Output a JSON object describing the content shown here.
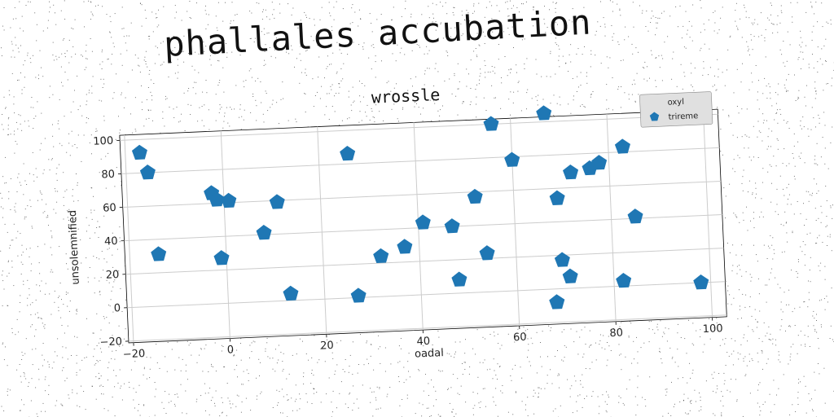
{
  "suptitle": "phallales accubation",
  "colors": {
    "marker": "#1f77b4",
    "grid": "#cccccc",
    "legend_bg": "#e0e0e0"
  },
  "chart_data": {
    "type": "scatter",
    "title": "wrossle",
    "xlabel": "oadal",
    "ylabel": "unsolemnified",
    "xlim": [
      -21,
      103
    ],
    "ylim": [
      -21,
      103
    ],
    "xticks": [
      -20,
      0,
      20,
      40,
      60,
      80,
      100
    ],
    "yticks": [
      -20,
      0,
      20,
      40,
      60,
      80,
      100
    ],
    "grid": true,
    "legend": {
      "title": "oxyl",
      "placement": "top-right",
      "entries": [
        "trireme"
      ]
    },
    "marker": "pentagon",
    "series": [
      {
        "name": "trireme",
        "points": [
          [
            -17,
            92
          ],
          [
            -15.5,
            80
          ],
          [
            -14,
            31
          ],
          [
            -2.5,
            66
          ],
          [
            -1.5,
            62
          ],
          [
            1,
            61
          ],
          [
            -1,
            27
          ],
          [
            8,
            41
          ],
          [
            11,
            59
          ],
          [
            13,
            4
          ],
          [
            26,
            86
          ],
          [
            27,
            1
          ],
          [
            32,
            24
          ],
          [
            37,
            29
          ],
          [
            41,
            43
          ],
          [
            47,
            40
          ],
          [
            48,
            8
          ],
          [
            52,
            57
          ],
          [
            54,
            23
          ],
          [
            56,
            100
          ],
          [
            60,
            78
          ],
          [
            67,
            105
          ],
          [
            68,
            -8
          ],
          [
            69,
            54
          ],
          [
            69.5,
            17
          ],
          [
            71,
            7
          ],
          [
            72,
            69
          ],
          [
            76,
            71
          ],
          [
            78,
            74
          ],
          [
            82,
            3
          ],
          [
            83,
            83
          ],
          [
            85,
            41
          ],
          [
            98,
            0
          ]
        ]
      }
    ]
  }
}
